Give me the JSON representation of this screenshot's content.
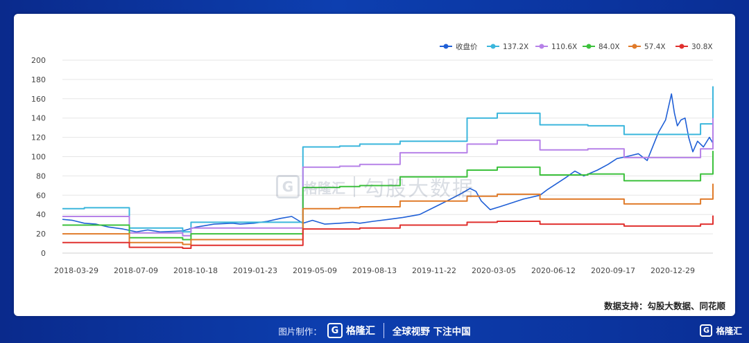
{
  "chart_data": {
    "type": "line",
    "title": "",
    "xlabel": "",
    "ylabel": "",
    "ylim": [
      0,
      200
    ],
    "yticks": [
      0,
      20,
      40,
      60,
      80,
      100,
      120,
      140,
      160,
      180,
      200
    ],
    "x_tick_labels": [
      "2018-03-29",
      "2018-07-09",
      "2018-10-18",
      "2019-01-23",
      "2019-05-09",
      "2019-08-13",
      "2019-11-22",
      "2020-03-05",
      "2020-06-12",
      "2020-09-17",
      "2020-12-29"
    ],
    "grid": "horizontal",
    "legend_position": "top-right",
    "x_range": [
      "2018-03-29",
      "2021-03-31"
    ],
    "series": [
      {
        "name": "收盘价",
        "color": "#1f5fd6",
        "marker": "diamond",
        "x": [
          "2018-03-29",
          "2018-04-15",
          "2018-05-05",
          "2018-05-25",
          "2018-06-15",
          "2018-07-09",
          "2018-08-01",
          "2018-08-20",
          "2018-09-10",
          "2018-10-18",
          "2018-11-10",
          "2018-12-10",
          "2019-01-10",
          "2019-01-23",
          "2019-02-15",
          "2019-03-10",
          "2019-04-01",
          "2019-04-20",
          "2019-05-09",
          "2019-05-25",
          "2019-06-15",
          "2019-07-10",
          "2019-08-01",
          "2019-08-13",
          "2019-09-05",
          "2019-10-01",
          "2019-10-25",
          "2019-11-22",
          "2019-12-15",
          "2020-01-10",
          "2020-02-01",
          "2020-02-15",
          "2020-02-25",
          "2020-03-05",
          "2020-03-20",
          "2020-04-05",
          "2020-04-25",
          "2020-05-15",
          "2020-06-12",
          "2020-06-25",
          "2020-07-10",
          "2020-07-25",
          "2020-08-10",
          "2020-08-25",
          "2020-09-17",
          "2020-10-05",
          "2020-10-20",
          "2020-11-05",
          "2020-11-25",
          "2020-12-10",
          "2020-12-29",
          "2021-01-10",
          "2021-01-20",
          "2021-01-25",
          "2021-01-30",
          "2021-02-05",
          "2021-02-12",
          "2021-02-18",
          "2021-02-25",
          "2021-03-05",
          "2021-03-15",
          "2021-03-25",
          "2021-03-31"
        ],
        "values": [
          35,
          34,
          31,
          30,
          27,
          25,
          22,
          24,
          22,
          23,
          27,
          30,
          31,
          30,
          31,
          33,
          36,
          38,
          31,
          34,
          30,
          31,
          32,
          31,
          33,
          35,
          37,
          40,
          47,
          55,
          62,
          67,
          64,
          54,
          45,
          48,
          52,
          56,
          60,
          66,
          72,
          78,
          85,
          80,
          86,
          92,
          98,
          100,
          103,
          96,
          125,
          138,
          165,
          145,
          132,
          138,
          140,
          120,
          105,
          116,
          110,
          120,
          114
        ]
      },
      {
        "name": "137.2X",
        "color": "#3bb6dc",
        "x": [
          "2018-03-29",
          "2018-05-05",
          "2018-07-09",
          "2018-07-20",
          "2018-10-18",
          "2018-11-01",
          "2019-05-07",
          "2019-05-09",
          "2019-07-10",
          "2019-08-13",
          "2019-10-20",
          "2020-02-10",
          "2020-04-01",
          "2020-06-12",
          "2020-09-01",
          "2020-11-01",
          "2021-03-10",
          "2021-03-31"
        ],
        "values": [
          46,
          47,
          47,
          26,
          22,
          32,
          32,
          110,
          111,
          113,
          116,
          140,
          145,
          133,
          132,
          123,
          134,
          173
        ]
      },
      {
        "name": "110.6X",
        "color": "#b681e8",
        "x": [
          "2018-03-29",
          "2018-07-09",
          "2018-07-20",
          "2018-10-18",
          "2018-11-01",
          "2019-05-07",
          "2019-05-09",
          "2019-07-10",
          "2019-08-13",
          "2019-10-20",
          "2020-02-10",
          "2020-04-01",
          "2020-06-12",
          "2020-09-01",
          "2020-11-01",
          "2021-03-10",
          "2021-03-31"
        ],
        "values": [
          38,
          38,
          21,
          18,
          26,
          26,
          89,
          90,
          92,
          104,
          113,
          117,
          107,
          108,
          99,
          108,
          140
        ]
      },
      {
        "name": "84.0X",
        "color": "#3cc13c",
        "x": [
          "2018-03-29",
          "2018-07-09",
          "2018-07-20",
          "2018-10-18",
          "2018-11-01",
          "2019-05-07",
          "2019-05-09",
          "2019-07-10",
          "2019-08-13",
          "2019-10-20",
          "2020-02-10",
          "2020-04-01",
          "2020-06-12",
          "2020-09-01",
          "2020-11-01",
          "2021-03-10",
          "2021-03-31"
        ],
        "values": [
          29,
          29,
          16,
          14,
          20,
          20,
          68,
          69,
          70,
          79,
          86,
          89,
          81,
          82,
          75,
          82,
          106
        ]
      },
      {
        "name": "57.4X",
        "color": "#e07b2a",
        "x": [
          "2018-03-29",
          "2018-07-09",
          "2018-07-20",
          "2018-10-18",
          "2018-11-01",
          "2019-05-07",
          "2019-05-09",
          "2019-07-10",
          "2019-08-13",
          "2019-10-20",
          "2020-02-10",
          "2020-04-01",
          "2020-06-12",
          "2020-09-01",
          "2020-11-01",
          "2021-03-10",
          "2021-03-31"
        ],
        "values": [
          20,
          20,
          11,
          9,
          14,
          14,
          46,
          47,
          48,
          54,
          59,
          61,
          56,
          56,
          51,
          56,
          72
        ]
      },
      {
        "name": "30.8X",
        "color": "#e0302e",
        "x": [
          "2018-03-29",
          "2018-07-09",
          "2018-07-20",
          "2018-10-18",
          "2018-11-01",
          "2019-05-07",
          "2019-05-09",
          "2019-07-10",
          "2019-08-13",
          "2019-10-20",
          "2020-02-10",
          "2020-04-01",
          "2020-06-12",
          "2020-09-01",
          "2020-11-01",
          "2021-03-10",
          "2021-03-31"
        ],
        "values": [
          11,
          11,
          6,
          5,
          8,
          8,
          25,
          25,
          26,
          29,
          32,
          33,
          30,
          30,
          28,
          30,
          39
        ]
      }
    ]
  },
  "source_text": "数据支持：勾股大数据、同花顺",
  "watermark": {
    "logo_glyph": "G",
    "brand": "格隆汇",
    "text": "勾股大数据"
  },
  "footer": {
    "label": "图片制作：",
    "logo_glyph": "G",
    "brand": "格隆汇",
    "slogan": "全球视野 下注中国"
  },
  "corner_brand": {
    "logo_glyph": "G",
    "brand": "格隆汇"
  }
}
